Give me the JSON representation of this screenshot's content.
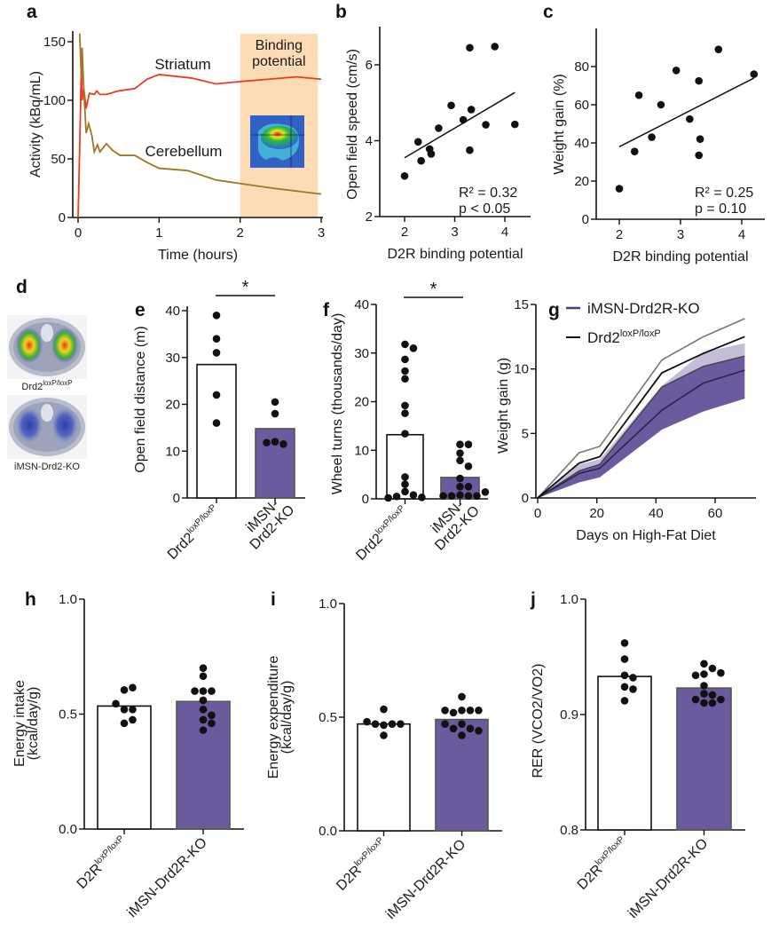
{
  "colors": {
    "purple_bar": "#6b5b9e",
    "purple_dark": "#463a8c",
    "striatum": "#ee3a24",
    "cerebellum": "#a27526",
    "shade": "#fddcb5",
    "dot": "#111111"
  },
  "panel_d": {
    "panel_label": "d",
    "images": [
      {
        "label": "Drd2",
        "label_sup": "loxP/loxP"
      },
      {
        "label": "iMSN-Drd2-KO",
        "label_sup": ""
      }
    ]
  },
  "chart_data": [
    {
      "panel_label": "a",
      "type": "line",
      "xlabel": "Time (hours)",
      "ylabel": "Activity (kBq/mL)",
      "xlim": [
        0,
        3
      ],
      "ylim": [
        0,
        160
      ],
      "xticks": [
        "0",
        "1",
        "2",
        "3"
      ],
      "yticks": [
        "0",
        "50",
        "100",
        "150"
      ],
      "shaded_region": {
        "x": [
          2,
          3
        ],
        "label_line1": "Binding",
        "label_line2": "potential"
      },
      "series": [
        {
          "name": "Striatum",
          "color": "#ee3a24",
          "points": [
            [
              0,
              0
            ],
            [
              0.02,
              60
            ],
            [
              0.04,
              128
            ],
            [
              0.05,
              100
            ],
            [
              0.07,
              110
            ],
            [
              0.1,
              93
            ],
            [
              0.14,
              106
            ],
            [
              0.2,
              105
            ],
            [
              0.23,
              108
            ],
            [
              0.27,
              105
            ],
            [
              0.35,
              105
            ],
            [
              0.5,
              108
            ],
            [
              0.7,
              110
            ],
            [
              0.85,
              118
            ],
            [
              1.0,
              122
            ],
            [
              1.4,
              119
            ],
            [
              1.7,
              114
            ],
            [
              2.0,
              116
            ],
            [
              2.7,
              120
            ],
            [
              3.0,
              118
            ]
          ]
        },
        {
          "name": "Cerebellum",
          "color": "#a27526",
          "points": [
            [
              0.02,
              157
            ],
            [
              0.04,
              120
            ],
            [
              0.05,
              145
            ],
            [
              0.07,
              110
            ],
            [
              0.1,
              72
            ],
            [
              0.13,
              80
            ],
            [
              0.17,
              70
            ],
            [
              0.2,
              56
            ],
            [
              0.24,
              62
            ],
            [
              0.27,
              56
            ],
            [
              0.35,
              63
            ],
            [
              0.43,
              57
            ],
            [
              0.52,
              53
            ],
            [
              0.7,
              53
            ],
            [
              0.85,
              47
            ],
            [
              1.0,
              42
            ],
            [
              1.35,
              40
            ],
            [
              1.7,
              32
            ],
            [
              2.0,
              29
            ],
            [
              2.4,
              25
            ],
            [
              3.0,
              20
            ]
          ]
        }
      ]
    },
    {
      "panel_label": "b",
      "type": "scatter",
      "xlabel": "D2R binding potential",
      "ylabel": "Open field speed (cm/s)",
      "xlim": [
        1.6,
        4.4
      ],
      "ylim": [
        2,
        7
      ],
      "xticks": [
        "2",
        "3",
        "4"
      ],
      "yticks": [
        "2",
        "4",
        "6"
      ],
      "points": [
        [
          2.0,
          3.07
        ],
        [
          2.27,
          3.97
        ],
        [
          2.33,
          3.47
        ],
        [
          2.5,
          3.78
        ],
        [
          2.53,
          3.65
        ],
        [
          2.68,
          4.33
        ],
        [
          2.93,
          4.93
        ],
        [
          3.17,
          4.55
        ],
        [
          3.3,
          6.45
        ],
        [
          3.33,
          4.82
        ],
        [
          3.3,
          3.75
        ],
        [
          3.62,
          4.42
        ],
        [
          3.8,
          6.48
        ],
        [
          4.2,
          4.43
        ]
      ],
      "fit_line": [
        [
          2.0,
          3.55
        ],
        [
          4.2,
          5.27
        ]
      ],
      "stat1": "R² = 0.32",
      "stat2": "p < 0.05"
    },
    {
      "panel_label": "c",
      "type": "scatter",
      "xlabel": "D2R binding potential",
      "ylabel": "Weight gain (%)",
      "xlim": [
        1.6,
        4.4
      ],
      "ylim": [
        0,
        100
      ],
      "xticks": [
        "2",
        "3",
        "4"
      ],
      "yticks": [
        "0",
        "20",
        "40",
        "60",
        "80"
      ],
      "points": [
        [
          2.0,
          16
        ],
        [
          2.25,
          35.5
        ],
        [
          2.32,
          65
        ],
        [
          2.53,
          43
        ],
        [
          2.68,
          60
        ],
        [
          2.93,
          78
        ],
        [
          3.15,
          52.5
        ],
        [
          3.3,
          72.5
        ],
        [
          3.32,
          42
        ],
        [
          3.3,
          33.5
        ],
        [
          3.62,
          89
        ],
        [
          4.2,
          76
        ]
      ],
      "fit_line": [
        [
          2.0,
          38
        ],
        [
          4.2,
          74
        ]
      ],
      "stat1": "R² = 0.25",
      "stat2": "p = 0.10"
    },
    {
      "panel_label": "e",
      "type": "bar",
      "ylabel": "Open field distance (m)",
      "ylim": [
        0,
        40
      ],
      "yticks": [
        "0",
        "10",
        "20",
        "30",
        "40"
      ],
      "significance": "*",
      "groups": [
        {
          "label": "Drd2",
          "label_sup": "loxP/loxP",
          "label2": "",
          "mean": 28.5,
          "fill": "#ffffff",
          "points": [
            39,
            34,
            31,
            22,
            16
          ]
        },
        {
          "label": "iMSN-",
          "label_sup": "",
          "label2": "Drd2-KO",
          "mean": 14.8,
          "fill": "#6b5b9e",
          "points": [
            20.5,
            18,
            12,
            11.5,
            11.8
          ]
        }
      ]
    },
    {
      "panel_label": "f",
      "type": "bar",
      "ylabel": "Wheel turns (thousands/day)",
      "ylim": [
        0,
        40
      ],
      "yticks": [
        "0",
        "10",
        "20",
        "30",
        "40"
      ],
      "significance": "*",
      "groups": [
        {
          "label": "Drd2",
          "label_sup": "loxP/loxP",
          "label2": "",
          "mean": 13.2,
          "fill": "#ffffff",
          "points": [
            31.8,
            31,
            28.7,
            26.3,
            24.7,
            19.2,
            17.6,
            13.4,
            4.5,
            3,
            1.5,
            0.8,
            0.5,
            0.3,
            0.2
          ]
        },
        {
          "label": "iMSN-",
          "label_sup": "",
          "label2": "Drd2-KO",
          "mean": 4.4,
          "fill": "#6b5b9e",
          "points": [
            11.2,
            11.2,
            9.4,
            7.9,
            6.7,
            4.2,
            2.5,
            2.5,
            0.8,
            0.6,
            0.6,
            0.6,
            0.6,
            1.4
          ]
        }
      ]
    },
    {
      "panel_label": "g",
      "type": "line",
      "xlabel": "Days on High-Fat Diet",
      "ylabel": "Weight gain (g)",
      "xlim": [
        0,
        72
      ],
      "ylim": [
        0,
        15
      ],
      "xticks": [
        "0",
        "20",
        "40",
        "60"
      ],
      "yticks": [
        "0",
        "5",
        "10",
        "15"
      ],
      "legend_position": "top-left",
      "x": [
        0,
        14,
        21,
        42,
        56,
        70
      ],
      "series": [
        {
          "name": "iMSN-Drd2R-KO",
          "name_sup": "",
          "color": "#463a8c",
          "mean": [
            0,
            1.9,
            2.3,
            6.8,
            8.9,
            9.9
          ],
          "upper": [
            0,
            2.6,
            3.0,
            8.7,
            11.3,
            12.0
          ],
          "lower": [
            0,
            1.2,
            1.6,
            5.3,
            6.7,
            7.7
          ]
        },
        {
          "name": "Drd2",
          "name_sup": "loxP/loxP",
          "color": "#111111",
          "mean": [
            0,
            2.7,
            3.2,
            9.7,
            11.2,
            12.5
          ],
          "upper": [
            0,
            3.5,
            4.0,
            10.7,
            12.5,
            13.9
          ],
          "lower": [
            0,
            2.1,
            2.6,
            8.6,
            10.2,
            11.0
          ]
        }
      ]
    },
    {
      "panel_label": "h",
      "type": "bar",
      "ylabel": "Energy intake",
      "ylabel2": "(kcal/day/g)",
      "ylim": [
        0,
        1.0
      ],
      "yticks": [
        "0.0",
        "0.5",
        "1.0"
      ],
      "groups": [
        {
          "label": "D2R",
          "label_sup": "loxP/loxP",
          "label2": "",
          "mean": 0.535,
          "fill": "#ffffff",
          "points": [
            0.605,
            0.615,
            0.52,
            0.52,
            0.545,
            0.46,
            0.475
          ]
        },
        {
          "label": "iMSN-Drd2R-KO",
          "label_sup": "",
          "label2": "",
          "mean": 0.555,
          "fill": "#6b5b9e",
          "points": [
            0.7,
            0.665,
            0.6,
            0.6,
            0.6,
            0.56,
            0.52,
            0.495,
            0.475,
            0.46,
            0.43
          ]
        }
      ]
    },
    {
      "panel_label": "i",
      "type": "bar",
      "ylabel": "Energy expenditure",
      "ylabel2": "(kcal/day/g)",
      "ylim": [
        0,
        1.0
      ],
      "yticks": [
        "0.0",
        "0.5",
        "1.0"
      ],
      "groups": [
        {
          "label": "D2R",
          "label_sup": "loxP/loxP",
          "label2": "",
          "mean": 0.47,
          "fill": "#ffffff",
          "points": [
            0.535,
            0.465,
            0.47,
            0.47,
            0.47,
            0.48,
            0.42
          ]
        },
        {
          "label": "iMSN-Drd2R-KO",
          "label_sup": "",
          "label2": "",
          "mean": 0.49,
          "fill": "#6b5b9e",
          "points": [
            0.59,
            0.53,
            0.53,
            0.52,
            0.53,
            0.53,
            0.47,
            0.45,
            0.45,
            0.44,
            0.47,
            0.42
          ]
        }
      ]
    },
    {
      "panel_label": "j",
      "type": "bar",
      "ylabel": "RER (VCO2/VO2)",
      "ylabel2": "",
      "ylim": [
        0.8,
        1.0
      ],
      "yticks": [
        "0.8",
        "0.9",
        "1.0"
      ],
      "groups": [
        {
          "label": "D2R",
          "label_sup": "loxP/loxP",
          "label2": "",
          "mean": 0.933,
          "fill": "#ffffff",
          "points": [
            0.962,
            0.948,
            0.934,
            0.932,
            0.924,
            0.922,
            0.912
          ]
        },
        {
          "label": "iMSN-Drd2R-KO",
          "label_sup": "",
          "label2": "",
          "mean": 0.923,
          "fill": "#6b5b9e",
          "points": [
            0.944,
            0.94,
            0.935,
            0.934,
            0.936,
            0.925,
            0.918,
            0.917,
            0.913,
            0.91,
            0.91,
            0.913
          ]
        }
      ]
    }
  ]
}
